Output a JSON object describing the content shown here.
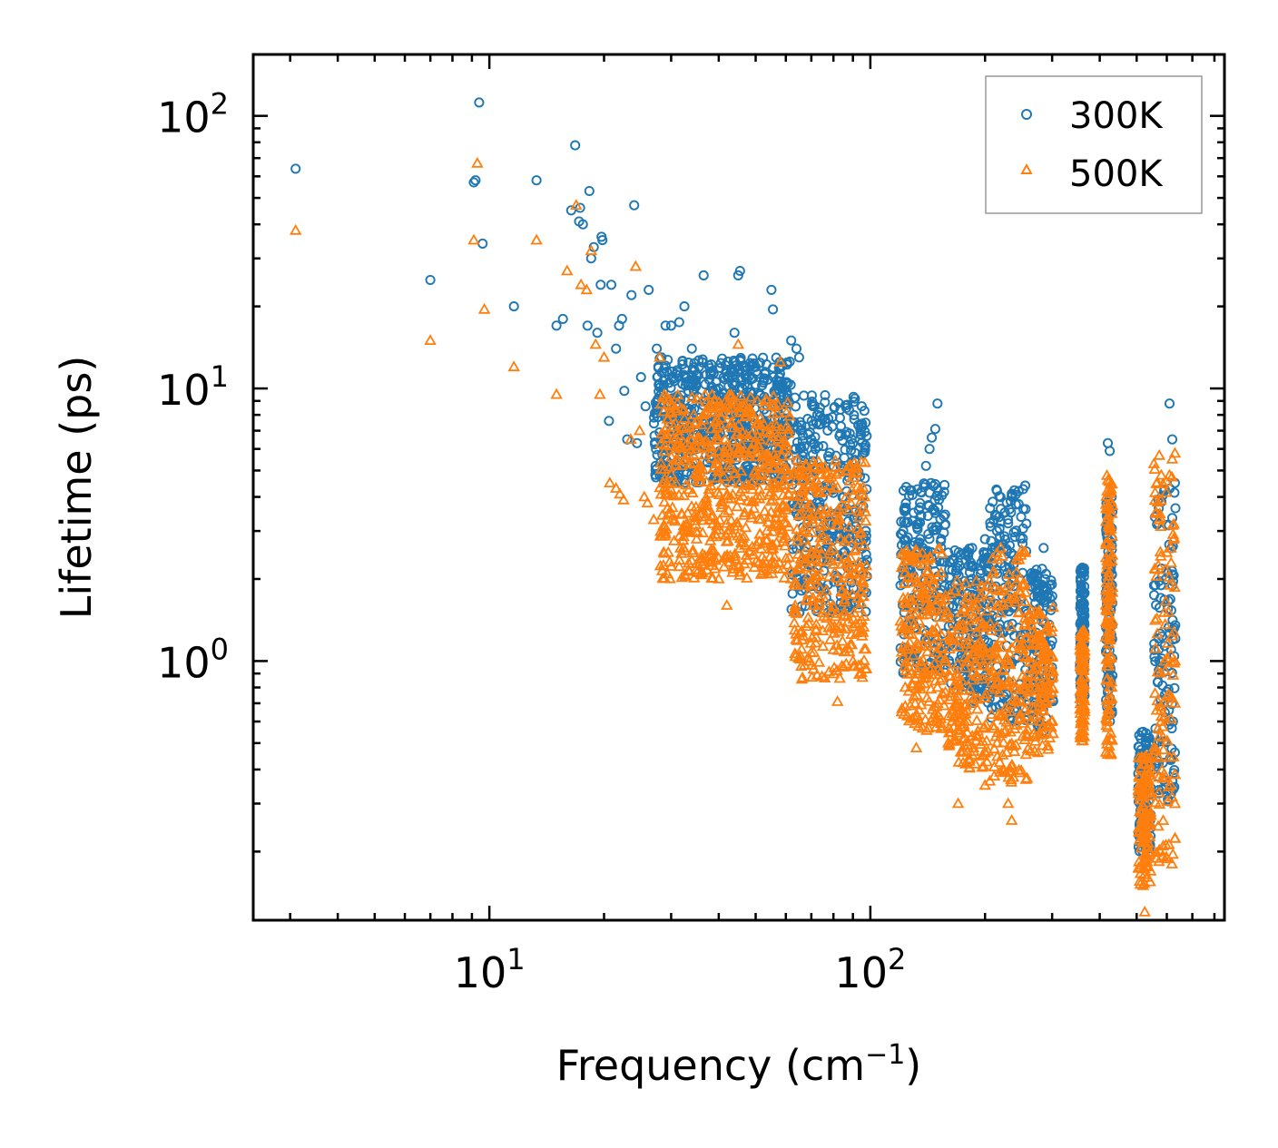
{
  "chart_data": {
    "type": "scatter",
    "title": "",
    "xlabel": "Frequency (cm",
    "xlabel_superscript": "−1",
    "xlabel_suffix": ")",
    "ylabel": "Lifetime (ps)",
    "xscale": "log",
    "yscale": "log",
    "xlim": [
      2.4,
      850
    ],
    "ylim": [
      0.112,
      168
    ],
    "x_ticks": [
      {
        "value": 10,
        "base": "10",
        "exp": "1"
      },
      {
        "value": 100,
        "base": "10",
        "exp": "2"
      }
    ],
    "y_ticks": [
      {
        "value": 1,
        "base": "10",
        "exp": "0"
      },
      {
        "value": 10,
        "base": "10",
        "exp": "1"
      },
      {
        "value": 100,
        "base": "10",
        "exp": "2"
      }
    ],
    "legend_position": "top-right",
    "series": [
      {
        "name": "300K",
        "marker": "circle",
        "color": "#1f77b4",
        "points": [
          [
            3.1,
            64
          ],
          [
            7.0,
            25
          ],
          [
            9.1,
            57
          ],
          [
            9.2,
            58
          ],
          [
            9.4,
            112
          ],
          [
            9.6,
            34
          ],
          [
            11.6,
            20
          ],
          [
            13.3,
            58
          ],
          [
            15.0,
            17
          ],
          [
            15.6,
            18
          ],
          [
            16.4,
            45
          ],
          [
            16.8,
            78
          ],
          [
            17.3,
            46
          ],
          [
            17.2,
            41
          ],
          [
            17.6,
            40
          ],
          [
            18.1,
            17
          ],
          [
            18.3,
            53
          ],
          [
            18.5,
            30
          ],
          [
            18.8,
            33
          ],
          [
            19.2,
            16
          ],
          [
            19.6,
            24
          ],
          [
            19.7,
            36
          ],
          [
            19.8,
            35
          ],
          [
            20.6,
            7.6
          ],
          [
            20.9,
            24
          ],
          [
            21.5,
            14
          ],
          [
            21.9,
            17
          ],
          [
            22.3,
            18
          ],
          [
            22.6,
            9.8
          ],
          [
            23.0,
            6.5
          ],
          [
            23.6,
            22
          ],
          [
            24.0,
            47
          ],
          [
            24.4,
            6.3
          ],
          [
            25.0,
            11
          ],
          [
            25.7,
            8.6
          ],
          [
            26.2,
            23
          ],
          [
            27.5,
            14
          ],
          [
            28.3,
            13
          ],
          [
            29.0,
            17
          ],
          [
            30.0,
            17
          ],
          [
            31.5,
            17.5
          ],
          [
            32.5,
            20
          ],
          [
            34.0,
            14
          ],
          [
            35.5,
            12
          ],
          [
            36.5,
            26
          ],
          [
            38.0,
            11.5
          ],
          [
            40.0,
            10
          ],
          [
            44.0,
            16
          ],
          [
            45.0,
            26
          ],
          [
            45.5,
            27
          ],
          [
            47.0,
            12
          ],
          [
            50.0,
            12
          ],
          [
            53.0,
            11.5
          ],
          [
            55.0,
            23
          ],
          [
            55.5,
            19.5
          ],
          [
            58.0,
            12
          ],
          [
            62.0,
            15
          ],
          [
            64.0,
            14
          ],
          [
            65.0,
            13
          ],
          [
            70.0,
            6.5
          ],
          [
            72.0,
            5.0
          ],
          [
            75.0,
            4.0
          ],
          [
            80.0,
            3.0
          ],
          [
            85.0,
            2.5
          ],
          [
            90.0,
            2.2
          ],
          [
            95.0,
            2.3
          ],
          [
            98.0,
            2.35
          ],
          [
            122.0,
            3.0
          ],
          [
            130.0,
            3.5
          ],
          [
            135.0,
            3.8
          ],
          [
            140.0,
            5.2
          ],
          [
            143.0,
            6.0
          ],
          [
            145.0,
            6.6
          ],
          [
            148.0,
            7.1
          ],
          [
            150.0,
            8.8
          ],
          [
            160.0,
            2.5
          ],
          [
            170.0,
            2.3
          ],
          [
            185.0,
            2.6
          ],
          [
            200.0,
            2.8
          ],
          [
            215.0,
            3.0
          ],
          [
            230.0,
            3.2
          ],
          [
            245.0,
            4.2
          ],
          [
            255.0,
            4.4
          ],
          [
            265.0,
            2.1
          ],
          [
            285.0,
            2.6
          ],
          [
            300.0,
            1.6
          ],
          [
            360.0,
            2.2
          ],
          [
            420.0,
            6.3
          ],
          [
            425.0,
            5.9
          ],
          [
            430.0,
            4.0
          ],
          [
            520.0,
            0.55
          ],
          [
            540.0,
            0.5
          ],
          [
            560.0,
            1.9
          ],
          [
            590.0,
            4.2
          ],
          [
            610.0,
            8.8
          ],
          [
            620.0,
            6.5
          ],
          [
            630.0,
            4.5
          ]
        ]
      },
      {
        "name": "500K",
        "marker": "triangle",
        "color": "#ff7f0e",
        "points": [
          [
            3.1,
            38
          ],
          [
            7.0,
            15
          ],
          [
            9.1,
            35
          ],
          [
            9.3,
            67
          ],
          [
            9.7,
            19.5
          ],
          [
            11.6,
            12
          ],
          [
            13.3,
            35
          ],
          [
            15.0,
            9.5
          ],
          [
            16.0,
            27
          ],
          [
            16.9,
            47
          ],
          [
            17.4,
            24
          ],
          [
            18.0,
            23
          ],
          [
            18.5,
            32
          ],
          [
            19.0,
            14.5
          ],
          [
            19.5,
            9.5
          ],
          [
            20.0,
            13
          ],
          [
            20.7,
            4.5
          ],
          [
            21.5,
            4.3
          ],
          [
            22.0,
            4.1
          ],
          [
            22.5,
            3.9
          ],
          [
            23.5,
            6.5
          ],
          [
            24.2,
            28
          ],
          [
            24.8,
            7
          ],
          [
            25.5,
            4.0
          ],
          [
            26.0,
            3.8
          ],
          [
            27.0,
            3.3
          ],
          [
            28.0,
            13
          ],
          [
            30.0,
            3.5
          ],
          [
            33.0,
            3.2
          ],
          [
            35.0,
            2.8
          ],
          [
            38.0,
            2.3
          ],
          [
            40.0,
            2.0
          ],
          [
            42.0,
            1.6
          ],
          [
            45.0,
            14.5
          ],
          [
            48.0,
            6.6
          ],
          [
            52.0,
            2.1
          ],
          [
            55.0,
            2.3
          ],
          [
            58.0,
            12.5
          ],
          [
            62.0,
            2.0
          ],
          [
            65.0,
            5.0
          ],
          [
            70.0,
            1.9
          ],
          [
            75.0,
            1.5
          ],
          [
            80.0,
            1.1
          ],
          [
            82.0,
            0.71
          ],
          [
            85.0,
            0.95
          ],
          [
            90.0,
            1.0
          ],
          [
            95.0,
            1.3
          ],
          [
            122.0,
            1.7
          ],
          [
            128.0,
            0.9
          ],
          [
            132.0,
            0.48
          ],
          [
            140.0,
            1.6
          ],
          [
            150.0,
            0.8
          ],
          [
            160.0,
            0.5
          ],
          [
            170.0,
            0.3
          ],
          [
            180.0,
            0.6
          ],
          [
            200.0,
            0.35
          ],
          [
            215.0,
            0.5
          ],
          [
            230.0,
            0.3
          ],
          [
            235.0,
            0.26
          ],
          [
            245.0,
            1.5
          ],
          [
            255.0,
            2.5
          ],
          [
            280.0,
            0.6
          ],
          [
            300.0,
            0.8
          ],
          [
            360.0,
            0.8
          ],
          [
            420.0,
            1.7
          ],
          [
            430.0,
            0.8
          ],
          [
            520.0,
            0.15
          ],
          [
            525.0,
            0.12
          ],
          [
            540.0,
            0.2
          ],
          [
            580.0,
            0.6
          ],
          [
            600.0,
            2.5
          ],
          [
            620.0,
            5.5
          ],
          [
            630.0,
            0.7
          ]
        ],
        "dense_clusters": [
          [
            28,
            62,
            2.0,
            9.5
          ],
          [
            63,
            98,
            0.85,
            5.5
          ],
          [
            120,
            158,
            0.55,
            2.6
          ],
          [
            160,
            205,
            0.4,
            2.0
          ],
          [
            205,
            260,
            0.35,
            2.6
          ],
          [
            262,
            302,
            0.45,
            1.6
          ],
          [
            355,
            365,
            0.5,
            1.3
          ],
          [
            415,
            432,
            0.45,
            4.8
          ],
          [
            505,
            545,
            0.15,
            0.45
          ],
          [
            555,
            632,
            0.18,
            5.8
          ]
        ]
      }
    ],
    "series_300K_dense_clusters": [
      [
        27,
        62,
        4.5,
        13
      ],
      [
        62,
        98,
        1.5,
        9.5
      ],
      [
        120,
        158,
        0.9,
        4.5
      ],
      [
        160,
        205,
        0.7,
        2.6
      ],
      [
        205,
        260,
        0.6,
        4.3
      ],
      [
        262,
        302,
        0.55,
        2.2
      ],
      [
        355,
        365,
        0.7,
        2.2
      ],
      [
        415,
        432,
        0.6,
        4.0
      ],
      [
        505,
        545,
        0.2,
        0.55
      ],
      [
        555,
        632,
        0.3,
        4.3
      ]
    ]
  }
}
